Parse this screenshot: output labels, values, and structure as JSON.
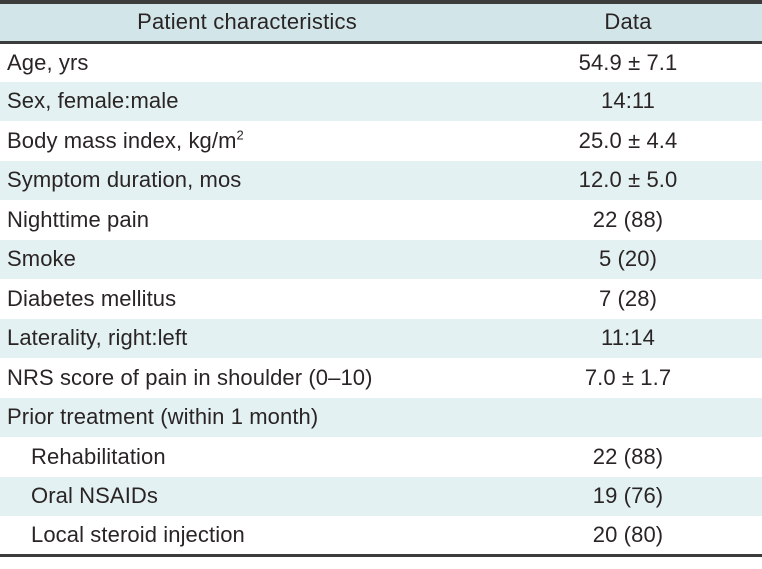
{
  "table": {
    "header": {
      "characteristics": "Patient characteristics",
      "data": "Data"
    },
    "rows": [
      {
        "label": "Age, yrs",
        "value": "54.9 ± 7.1",
        "indent": false
      },
      {
        "label": "Sex, female:male",
        "value": "14:11",
        "indent": false
      },
      {
        "label": "Body mass index, kg/m",
        "label_sup": "2",
        "value": "25.0 ± 4.4",
        "indent": false
      },
      {
        "label": "Symptom duration, mos",
        "value": "12.0 ± 5.0",
        "indent": false
      },
      {
        "label": "Nighttime pain",
        "value": "22 (88)",
        "indent": false
      },
      {
        "label": "Smoke",
        "value": "5 (20)",
        "indent": false
      },
      {
        "label": "Diabetes mellitus",
        "value": "7 (28)",
        "indent": false
      },
      {
        "label": "Laterality, right:left",
        "value": "11:14",
        "indent": false
      },
      {
        "label": "NRS score of pain in shoulder (0–10)",
        "value": "7.0 ± 1.7",
        "indent": false
      },
      {
        "label": "Prior treatment (within 1 month)",
        "value": "",
        "indent": false
      },
      {
        "label": "Rehabilitation",
        "value": "22 (88)",
        "indent": true
      },
      {
        "label": "Oral NSAIDs",
        "value": "19 (76)",
        "indent": true
      },
      {
        "label": "Local steroid injection",
        "value": "20 (80)",
        "indent": true
      }
    ],
    "colors": {
      "header_bg": "#d2e6ea",
      "stripe_bg": "#e3f1f2",
      "rule": "#3c3c3c",
      "text": "#2a2524"
    }
  }
}
